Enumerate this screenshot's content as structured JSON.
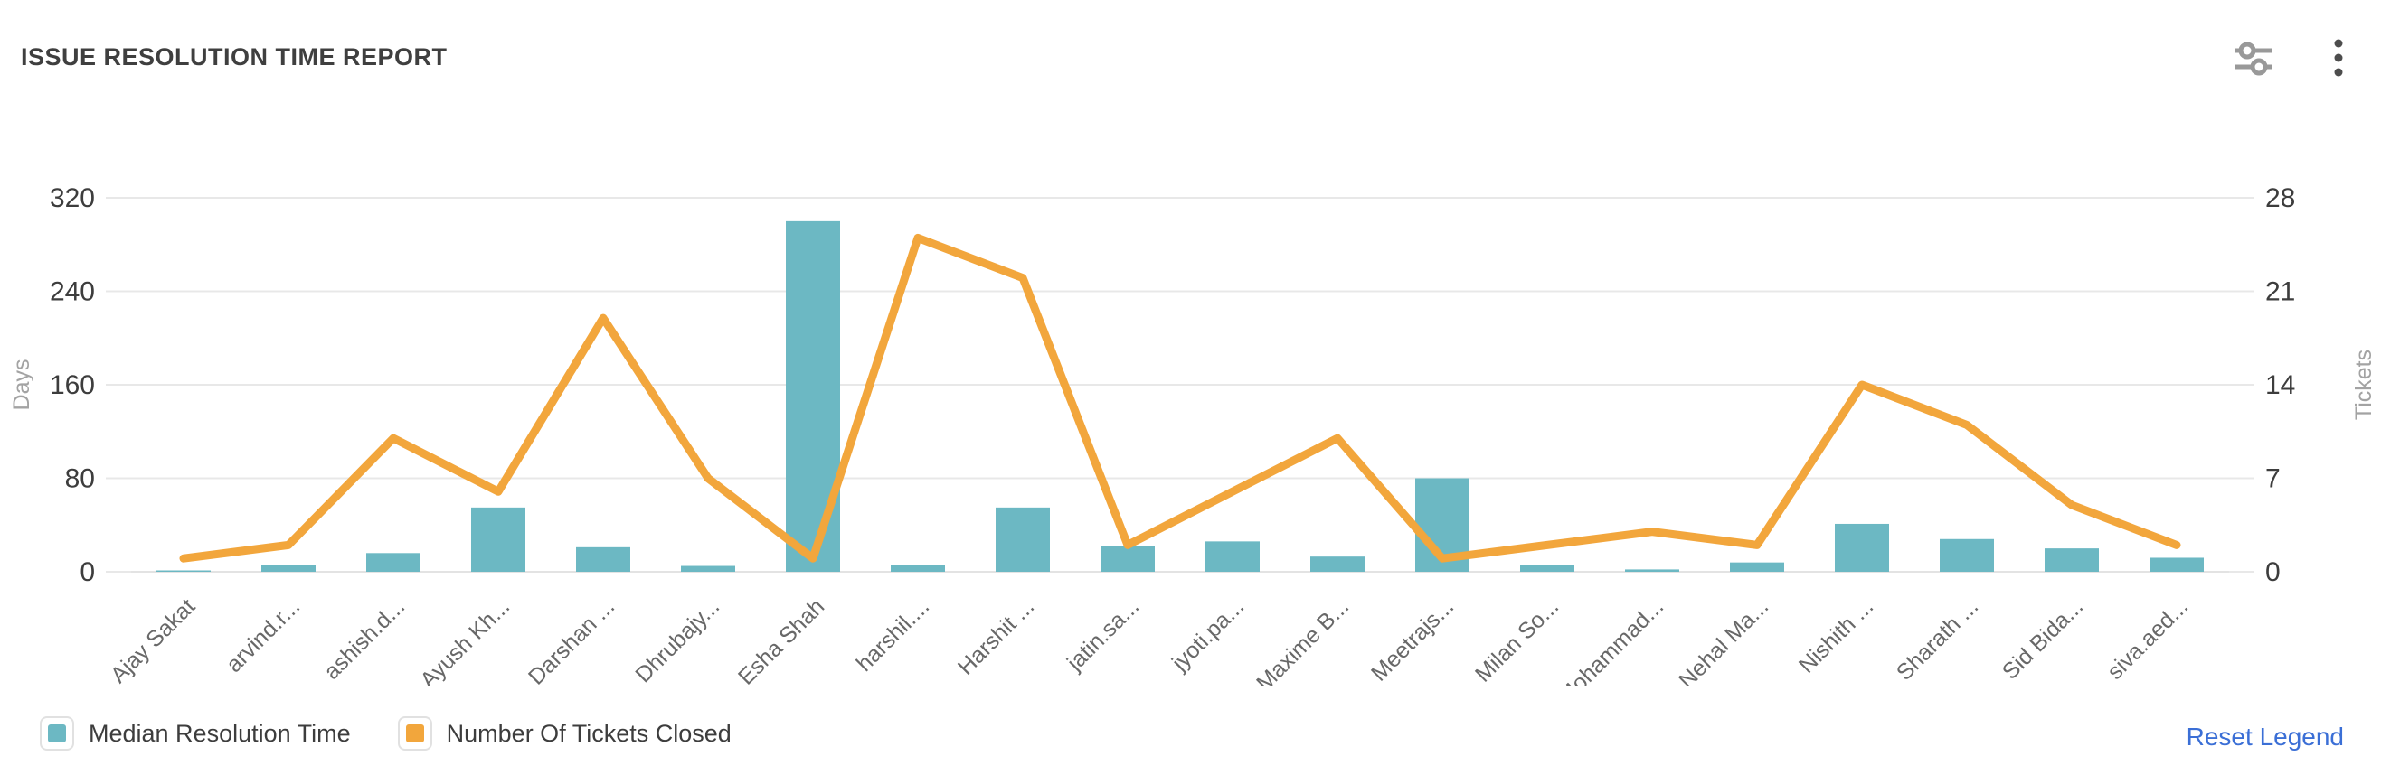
{
  "header": {
    "title": "ISSUE RESOLUTION TIME REPORT",
    "icons": [
      {
        "name": "filter-sliders-icon",
        "color": "#999999"
      },
      {
        "name": "kebab-menu-icon",
        "color": "#4d4d4d"
      }
    ]
  },
  "chart_data": {
    "type": "combo",
    "title": "ISSUE RESOLUTION TIME REPORT",
    "categories": [
      "Ajay Sakat",
      "arvind.r...",
      "ashish.d...",
      "Ayush Kh...",
      "Darshan ...",
      "Dhrubajy...",
      "Esha Shah",
      "harshil....",
      "Harshit ...",
      "jatin.sa...",
      "jyoti.pa...",
      "Maxime B...",
      "Meetrajs...",
      "Milan So...",
      "Mohammad...",
      "Nehal Ma...",
      "Nishith ...",
      "Sharath ...",
      "Sid Bida...",
      "siva.aed..."
    ],
    "series": [
      {
        "name": "Median Resolution Time",
        "type": "bar",
        "axis": "left",
        "color": "#6cb8c3",
        "values": [
          1,
          6,
          16,
          55,
          21,
          5,
          300,
          6,
          55,
          22,
          26,
          13,
          80,
          6,
          2,
          8,
          41,
          28,
          20,
          12
        ]
      },
      {
        "name": "Number Of Tickets Closed",
        "type": "line",
        "axis": "right",
        "color": "#f2a63c",
        "values": [
          1,
          2,
          10,
          6,
          19,
          7,
          1,
          25,
          22,
          2,
          6,
          10,
          1,
          2,
          3,
          2,
          14,
          11,
          5,
          2
        ]
      }
    ],
    "left_axis": {
      "label": "Days",
      "ticks": [
        0,
        80,
        160,
        240,
        320
      ],
      "min": 0,
      "max": 320
    },
    "right_axis": {
      "label": "Tickets",
      "ticks": [
        0,
        7,
        14,
        21,
        28
      ],
      "min": 0,
      "max": 28
    },
    "grid": true,
    "legend_position": "bottom",
    "styles": {
      "gridline_color": "#e8e8e8",
      "baseline_color": "#e3e3e3",
      "tick_label_color": "#3d3d3d",
      "axis_name_color": "#a3a3a3",
      "category_label_color": "#686868"
    }
  },
  "legend": {
    "items": [
      {
        "label": "Median Resolution Time",
        "color": "#6cb8c3"
      },
      {
        "label": "Number Of Tickets Closed",
        "color": "#f2a63c"
      }
    ],
    "reset_label": "Reset Legend"
  }
}
